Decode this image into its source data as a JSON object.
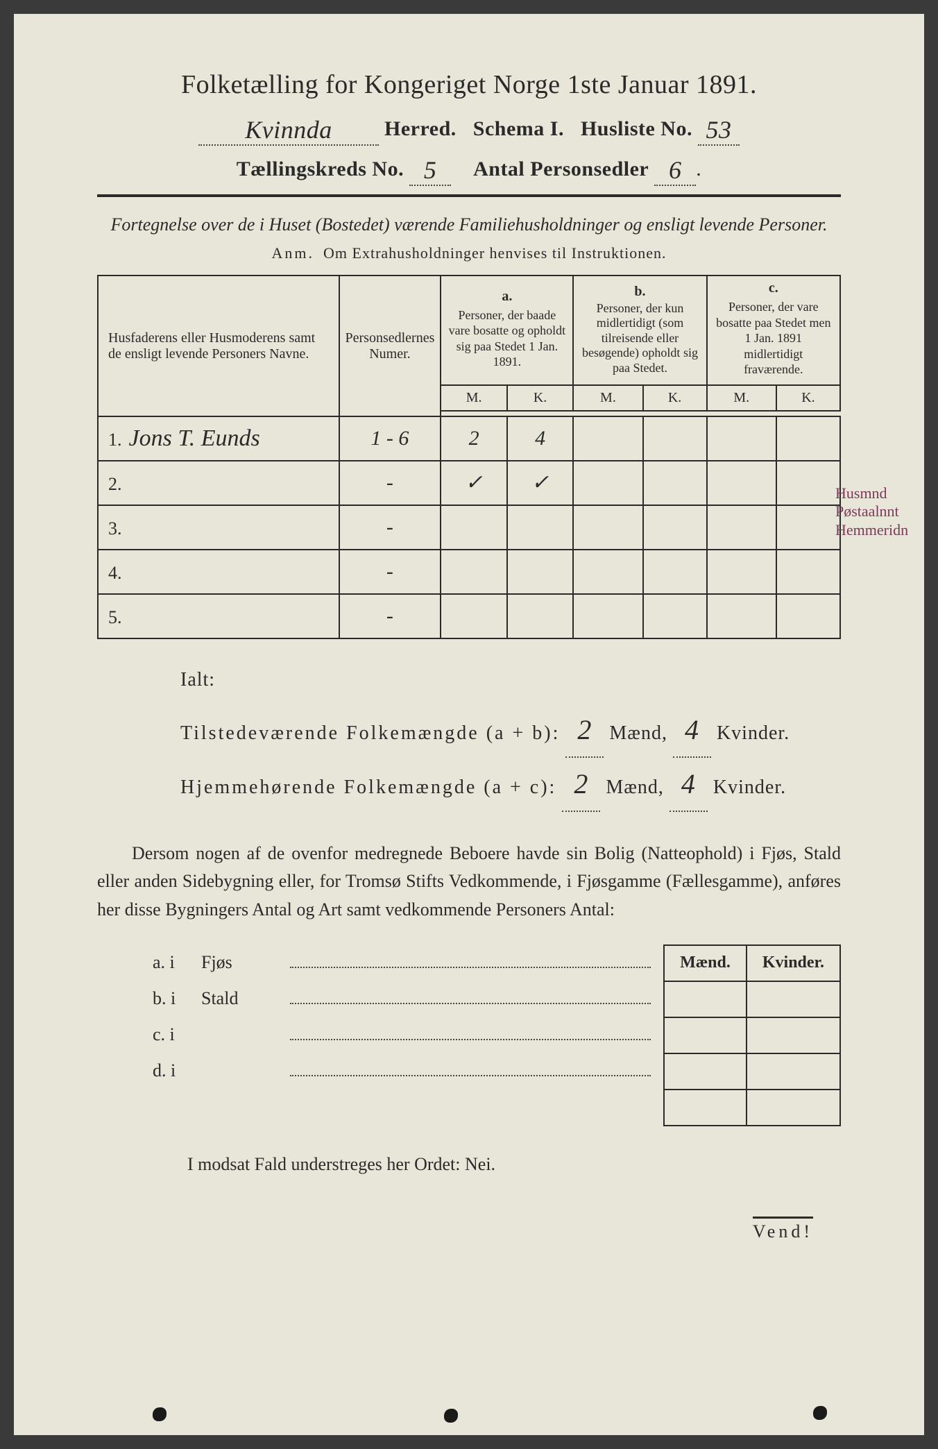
{
  "title": "Folketælling for Kongeriget Norge 1ste Januar 1891.",
  "header": {
    "herred_value": "Kvinnda",
    "herred_label": "Herred.",
    "schema_label": "Schema I.",
    "husliste_label": "Husliste No.",
    "husliste_value": "53",
    "kreds_label": "Tællingskreds No.",
    "kreds_value": "5",
    "antal_label": "Antal Personsedler",
    "antal_value": "6"
  },
  "subtitle": "Fortegnelse over de i Huset (Bostedet) værende Familiehusholdninger og ensligt levende Personer.",
  "anm": "Anm.  Om Extrahusholdninger henvises til Instruktionen.",
  "table": {
    "col_names": "Husfaderens eller Husmoderens samt de ensligt levende Personers Navne.",
    "col_numer": "Personsedlernes Numer.",
    "col_a_label": "a.",
    "col_a": "Personer, der baade vare bosatte og opholdt sig paa Stedet 1 Jan. 1891.",
    "col_b_label": "b.",
    "col_b": "Personer, der kun midlertidigt (som tilreisende eller besøgende) opholdt sig paa Stedet.",
    "col_c_label": "c.",
    "col_c": "Personer, der vare bosatte paa Stedet men 1 Jan. 1891 midlertidigt fraværende.",
    "m": "M.",
    "k": "K.",
    "rows": [
      {
        "n": "1.",
        "name": "Jons T. Eunds",
        "num": "1 - 6",
        "am": "2",
        "ak": "4",
        "bm": "",
        "bk": "",
        "cm": "",
        "ck": ""
      },
      {
        "n": "2.",
        "name": "",
        "num": "-",
        "am": "✓",
        "ak": "✓",
        "bm": "",
        "bk": "",
        "cm": "",
        "ck": ""
      },
      {
        "n": "3.",
        "name": "",
        "num": "-",
        "am": "",
        "ak": "",
        "bm": "",
        "bk": "",
        "cm": "",
        "ck": ""
      },
      {
        "n": "4.",
        "name": "",
        "num": "-",
        "am": "",
        "ak": "",
        "bm": "",
        "bk": "",
        "cm": "",
        "ck": ""
      },
      {
        "n": "5.",
        "name": "",
        "num": "-",
        "am": "",
        "ak": "",
        "bm": "",
        "bk": "",
        "cm": "",
        "ck": ""
      }
    ]
  },
  "margin_note": "Husmnd Pøstaalnnt Hemmeridn",
  "totals": {
    "ialt": "Ialt:",
    "line1_label": "Tilstedeværende Folkemængde (a + b):",
    "line1_m": "2",
    "line1_k": "4",
    "line2_label": "Hjemmehørende Folkemængde (a + c):",
    "line2_m": "2",
    "line2_k": "4",
    "maend": "Mænd,",
    "kvinder": "Kvinder."
  },
  "paragraph": "Dersom nogen af de ovenfor medregnede Beboere havde sin Bolig (Natteophold) i Fjøs, Stald eller anden Sidebygning eller, for Tromsø Stifts Vedkommende, i Fjøsgamme (Fællesgamme), anføres her disse Bygningers Antal og Art samt vedkommende Personers Antal:",
  "buildings": {
    "maend": "Mænd.",
    "kvinder": "Kvinder.",
    "rows": [
      {
        "key": "a.  i",
        "type": "Fjøs"
      },
      {
        "key": "b.  i",
        "type": "Stald"
      },
      {
        "key": "c.  i",
        "type": ""
      },
      {
        "key": "d.  i",
        "type": ""
      }
    ]
  },
  "nei_line": "I modsat Fald understreges her Ordet: Nei.",
  "vend": "Vend!",
  "colors": {
    "page_bg": "#e8e6d8",
    "text": "#2a2a2a",
    "note": "#7a3a5a"
  }
}
